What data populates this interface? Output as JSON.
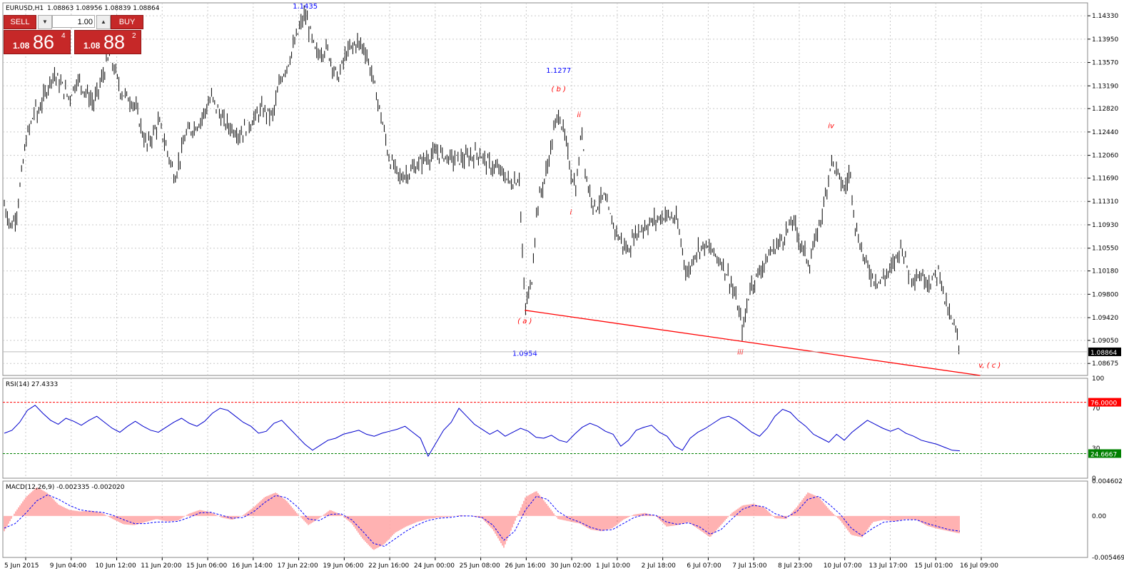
{
  "header": {
    "symbol_tf": "EURUSD,H1",
    "ohlc": "1.08863 1.08956 1.08839 1.08864"
  },
  "trade_panel": {
    "sell_label": "SELL",
    "buy_label": "BUY",
    "lot": "1.00",
    "sell_prefix": "1.08",
    "sell_big": "86",
    "sell_sup": "4",
    "buy_prefix": "1.08",
    "buy_big": "88",
    "buy_sup": "2",
    "down_icon": "triangle-down-icon",
    "up_icon": "triangle-up-icon"
  },
  "colors": {
    "candles": "#000000",
    "grid": "#c8c8c8",
    "wave_labels": "#ff0000",
    "price_labels": "#0000ff",
    "trendline": "#ff0000",
    "rsi_line": "#0000cd",
    "rsi_upper": "#ff0000",
    "rsi_lower": "#008000",
    "macd_hist": "#ff6464",
    "macd_signal": "#0000ff",
    "button": "#c62828",
    "current_price_tag": "#000000"
  },
  "chart_data": [
    {
      "type": "candlestick",
      "panel": "main",
      "symbol": "EURUSD",
      "timeframe": "H1",
      "ylim": [
        1.0848,
        1.1454
      ],
      "current_price": "1.08864",
      "y_ticks": [
        "1.14330",
        "1.13950",
        "1.13570",
        "1.13190",
        "1.12820",
        "1.12440",
        "1.12060",
        "1.11690",
        "1.11310",
        "1.10930",
        "1.10550",
        "1.10180",
        "1.09800",
        "1.09420",
        "1.09050",
        "1.08675"
      ],
      "x_ticks": [
        "5 Jun 2015",
        "9 Jun 04:00",
        "10 Jun 12:00",
        "11 Jun 20:00",
        "15 Jun 06:00",
        "16 Jun 14:00",
        "17 Jun 22:00",
        "19 Jun 06:00",
        "22 Jun 16:00",
        "24 Jun 00:00",
        "25 Jun 08:00",
        "26 Jun 16:00",
        "30 Jun 02:00",
        "1 Jul 10:00",
        "2 Jul 18:00",
        "6 Jul 07:00",
        "7 Jul 15:00",
        "8 Jul 23:00",
        "10 Jul 07:00",
        "13 Jul 17:00",
        "15 Jul 01:00",
        "16 Jul 09:00"
      ],
      "x_range": [
        "5 Jun 2015 00:00",
        "16 Jul 2015 09:00"
      ],
      "path": [
        [
          "5 Jun 2015 00:00",
          1.1125
        ],
        [
          "5 Jun 2015 05:00",
          1.109
        ],
        [
          "5 Jun 2015 09:00",
          1.111
        ],
        [
          "5 Jun 2015 16:00",
          1.123
        ],
        [
          "6 Jun 2015 00:00",
          1.129
        ],
        [
          "8 Jun 2015 00:00",
          1.127
        ],
        [
          "8 Jun 2015 12:00",
          1.134
        ],
        [
          "9 Jun 2015 00:00",
          1.13
        ],
        [
          "9 Jun 2015 06:00",
          1.133
        ],
        [
          "9 Jun 2015 18:00",
          1.129
        ],
        [
          "10 Jun 2015 06:00",
          1.137
        ],
        [
          "10 Jun 2015 14:00",
          1.131
        ],
        [
          "11 Jun 2015 00:00",
          1.129
        ],
        [
          "11 Jun 2015 09:00",
          1.122
        ],
        [
          "11 Jun 2015 18:00",
          1.126
        ],
        [
          "12 Jun 2015 06:00",
          1.117
        ],
        [
          "12 Jun 2015 14:00",
          1.124
        ],
        [
          "15 Jun 2015 00:00",
          1.126
        ],
        [
          "15 Jun 2015 09:00",
          1.13
        ],
        [
          "15 Jun 2015 18:00",
          1.126
        ],
        [
          "16 Jun 2015 06:00",
          1.124
        ],
        [
          "16 Jun 2015 14:00",
          1.126
        ],
        [
          "16 Jun 2015 22:00",
          1.128
        ],
        [
          "17 Jun 2015 06:00",
          1.127
        ],
        [
          "17 Jun 2015 12:00",
          1.133
        ],
        [
          "17 Jun 2015 18:00",
          1.136
        ],
        [
          "18 Jun 2015 03:00",
          1.142
        ],
        [
          "18 Jun 2015 06:00",
          1.1435
        ],
        [
          "18 Jun 2015 14:00",
          1.137
        ],
        [
          "18 Jun 2015 22:00",
          1.138
        ],
        [
          "19 Jun 2015 06:00",
          1.133
        ],
        [
          "19 Jun 2015 12:00",
          1.137
        ],
        [
          "19 Jun 2015 20:00",
          1.139
        ],
        [
          "22 Jun 2015 02:00",
          1.138
        ],
        [
          "22 Jun 2015 08:00",
          1.133
        ],
        [
          "22 Jun 2015 14:00",
          1.127
        ],
        [
          "22 Jun 2015 20:00",
          1.12
        ],
        [
          "23 Jun 2015 04:00",
          1.117
        ],
        [
          "23 Jun 2015 12:00",
          1.118
        ],
        [
          "23 Jun 2015 22:00",
          1.12
        ],
        [
          "24 Jun 2015 08:00",
          1.121
        ],
        [
          "24 Jun 2015 18:00",
          1.12
        ],
        [
          "25 Jun 2015 04:00",
          1.12
        ],
        [
          "25 Jun 2015 14:00",
          1.121
        ],
        [
          "25 Jun 2015 22:00",
          1.119
        ],
        [
          "26 Jun 2015 06:00",
          1.118
        ],
        [
          "26 Jun 2015 14:00",
          1.116
        ],
        [
          "26 Jun 2015 20:00",
          1.117
        ],
        [
          "29 Jun 2015 00:00",
          1.0954
        ],
        [
          "29 Jun 2015 05:00",
          1.1
        ],
        [
          "29 Jun 2015 09:00",
          1.112
        ],
        [
          "29 Jun 2015 16:00",
          1.118
        ],
        [
          "29 Jun 2015 22:00",
          1.125
        ],
        [
          "30 Jun 2015 01:00",
          1.1277
        ],
        [
          "30 Jun 2015 06:00",
          1.123
        ],
        [
          "30 Jun 2015 10:00",
          1.118
        ],
        [
          "30 Jun 2015 14:00",
          1.115
        ],
        [
          "30 Jun 2015 18:00",
          1.125
        ],
        [
          "30 Jun 2015 22:00",
          1.116
        ],
        [
          "1 Jul 2015 04:00",
          1.112
        ],
        [
          "1 Jul 2015 10:00",
          1.114
        ],
        [
          "1 Jul 2015 16:00",
          1.11
        ],
        [
          "1 Jul 2015 22:00",
          1.107
        ],
        [
          "2 Jul 2015 04:00",
          1.105
        ],
        [
          "2 Jul 2015 10:00",
          1.108
        ],
        [
          "2 Jul 2015 16:00",
          1.109
        ],
        [
          "3 Jul 2015 00:00",
          1.11
        ],
        [
          "3 Jul 2015 08:00",
          1.111
        ],
        [
          "3 Jul 2015 16:00",
          1.11
        ],
        [
          "6 Jul 2015 00:00",
          1.101
        ],
        [
          "6 Jul 2015 06:00",
          1.105
        ],
        [
          "6 Jul 2015 12:00",
          1.106
        ],
        [
          "6 Jul 2015 18:00",
          1.105
        ],
        [
          "7 Jul 2015 02:00",
          1.103
        ],
        [
          "7 Jul 2015 08:00",
          1.1
        ],
        [
          "7 Jul 2015 13:00",
          1.096
        ],
        [
          "7 Jul 2015 17:00",
          1.092
        ],
        [
          "7 Jul 2015 22:00",
          1.099
        ],
        [
          "8 Jul 2015 06:00",
          1.102
        ],
        [
          "8 Jul 2015 14:00",
          1.105
        ],
        [
          "8 Jul 2015 22:00",
          1.107
        ],
        [
          "9 Jul 2015 06:00",
          1.11
        ],
        [
          "9 Jul 2015 12:00",
          1.106
        ],
        [
          "9 Jul 2015 18:00",
          1.103
        ],
        [
          "10 Jul 2015 00:00",
          1.108
        ],
        [
          "10 Jul 2015 06:00",
          1.114
        ],
        [
          "10 Jul 2015 10:00",
          1.12
        ],
        [
          "10 Jul 2015 14:00",
          1.118
        ],
        [
          "10 Jul 2015 20:00",
          1.115
        ],
        [
          "13 Jul 2015 00:00",
          1.118
        ],
        [
          "13 Jul 2015 04:00",
          1.109
        ],
        [
          "13 Jul 2015 10:00",
          1.104
        ],
        [
          "13 Jul 2015 16:00",
          1.101
        ],
        [
          "13 Jul 2015 22:00",
          1.1
        ],
        [
          "14 Jul 2015 06:00",
          1.102
        ],
        [
          "14 Jul 2015 14:00",
          1.106
        ],
        [
          "14 Jul 2015 20:00",
          1.101
        ],
        [
          "15 Jul 2015 04:00",
          1.101
        ],
        [
          "15 Jul 2015 12:00",
          1.1
        ],
        [
          "15 Jul 2015 18:00",
          1.102
        ],
        [
          "15 Jul 2015 22:00",
          1.097
        ],
        [
          "16 Jul 2015 02:00",
          1.094
        ],
        [
          "16 Jul 2015 06:00",
          1.092
        ],
        [
          "16 Jul 2015 09:00",
          1.0886
        ]
      ],
      "annotations": [
        {
          "text": "1.1435",
          "kind": "price",
          "x": "18 Jun 2015 06:00",
          "y": 1.1445
        },
        {
          "text": "1.1277",
          "kind": "price",
          "x": "30 Jun 2015 01:00",
          "y": 1.134
        },
        {
          "text": "( b )",
          "kind": "wave",
          "x": "30 Jun 2015 01:00",
          "y": 1.131
        },
        {
          "text": "ii",
          "kind": "wave",
          "x": "30 Jun 2015 16:00",
          "y": 1.1268
        },
        {
          "text": "i",
          "kind": "wave",
          "x": "30 Jun 2015 10:00",
          "y": 1.111
        },
        {
          "text": "iv",
          "kind": "wave",
          "x": "10 Jul 2015 10:00",
          "y": 1.125
        },
        {
          "text": "( a )",
          "kind": "wave",
          "x": "28 Jun 2015 20:00",
          "y": 1.0933
        },
        {
          "text": "1.0954",
          "kind": "price",
          "x": "28 Jun 2015 18:00",
          "y": 1.088
        },
        {
          "text": "iii",
          "kind": "wave",
          "x": "7 Jul 2015 15:00",
          "y": 1.0882
        },
        {
          "text": "v, ( c )",
          "kind": "wave",
          "x": "17 Jul 2015 07:00",
          "y": 1.0861
        }
      ],
      "trendline": [
        [
          "28 Jun 2015 22:00",
          1.0954
        ],
        [
          "17 Jul 2015 00:00",
          1.0848
        ]
      ]
    },
    {
      "type": "line",
      "panel": "rsi",
      "name": "RSI(14)",
      "header_value": "27.4333",
      "ylim": [
        0,
        100
      ],
      "y_ticks": [
        "100",
        "70",
        "30",
        "0"
      ],
      "levels": [
        {
          "value": "76.0000",
          "y": 76,
          "color": "upper"
        },
        {
          "value": "24.6667",
          "y": 24.6667,
          "color": "lower"
        }
      ],
      "values": [
        45,
        48,
        56,
        68,
        73,
        65,
        58,
        54,
        60,
        57,
        53,
        58,
        62,
        56,
        50,
        46,
        52,
        57,
        52,
        48,
        46,
        51,
        56,
        60,
        55,
        52,
        57,
        65,
        70,
        68,
        62,
        56,
        52,
        45,
        47,
        55,
        58,
        50,
        42,
        34,
        28,
        33,
        38,
        40,
        44,
        46,
        48,
        44,
        42,
        45,
        47,
        49,
        52,
        46,
        40,
        22,
        35,
        48,
        56,
        70,
        62,
        54,
        49,
        44,
        48,
        42,
        46,
        50,
        47,
        41,
        40,
        43,
        38,
        36,
        44,
        51,
        55,
        52,
        47,
        44,
        32,
        38,
        48,
        51,
        53,
        46,
        42,
        32,
        28,
        40,
        46,
        50,
        55,
        60,
        62,
        58,
        52,
        46,
        42,
        50,
        62,
        69,
        66,
        58,
        52,
        44,
        40,
        36,
        44,
        38,
        46,
        52,
        58,
        54,
        50,
        47,
        50,
        45,
        42,
        38,
        36,
        34,
        31,
        28,
        27.4
      ]
    },
    {
      "type": "bar",
      "panel": "macd",
      "name": "MACD(12,26,9)",
      "header_values": "-0.002335 -0.002020",
      "ylim": [
        -0.00546,
        0.0046
      ],
      "y_ticks": [
        "0.004602",
        "0.00",
        "-0.005469"
      ],
      "histogram": [
        -0.002,
        0.0005,
        0.0025,
        0.0038,
        0.003,
        0.0015,
        0.0008,
        0.0006,
        0.0007,
        0.0004,
        -0.0004,
        -0.0011,
        -0.0012,
        -0.0008,
        -0.0004,
        -0.0007,
        -0.0006,
        0.0003,
        0.0008,
        0.0005,
        -0.0002,
        -0.0005,
        0.0001,
        0.0012,
        0.0025,
        0.0031,
        0.002,
        0.0003,
        -0.0012,
        -0.0003,
        0.0008,
        0.0002,
        -0.001,
        -0.003,
        -0.0045,
        -0.0037,
        -0.0022,
        -0.0014,
        -0.0008,
        -0.0004,
        -0.0002,
        -0.0001,
        0.0001,
        0.0,
        -0.0003,
        -0.0018,
        -0.0042,
        -0.0008,
        0.0025,
        0.0033,
        0.0015,
        -0.0004,
        -0.0007,
        -0.001,
        -0.0018,
        -0.002,
        -0.0016,
        -0.0005,
        0.0002,
        0.0004,
        0.0,
        -0.0014,
        -0.0012,
        -0.0008,
        -0.0018,
        -0.0028,
        -0.0012,
        0.0004,
        0.0014,
        0.0016,
        0.0011,
        -0.0003,
        -0.0004,
        0.0012,
        0.0031,
        0.0025,
        0.0008,
        -0.0006,
        -0.0025,
        -0.0028,
        -0.0008,
        -0.0005,
        -0.0007,
        -0.0004,
        -0.0005,
        -0.0013,
        -0.0017,
        -0.002,
        -0.0023
      ],
      "signal": [
        -0.0016,
        -0.001,
        0.0004,
        0.002,
        0.0028,
        0.0022,
        0.0014,
        0.0008,
        0.0006,
        0.0005,
        0.0001,
        -0.0005,
        -0.001,
        -0.001,
        -0.0008,
        -0.0008,
        -0.0007,
        -0.0002,
        0.0004,
        0.0005,
        0.0001,
        -0.0003,
        -0.0002,
        0.0006,
        0.0018,
        0.0027,
        0.0024,
        0.0012,
        -0.0004,
        -0.0006,
        0.0002,
        0.0003,
        -0.0005,
        -0.002,
        -0.0036,
        -0.004,
        -0.003,
        -0.002,
        -0.0012,
        -0.0006,
        -0.0003,
        -0.0002,
        0.0,
        0.0,
        -0.0002,
        -0.0012,
        -0.0032,
        -0.002,
        0.0008,
        0.0026,
        0.0022,
        0.0006,
        -0.0003,
        -0.0008,
        -0.0015,
        -0.0019,
        -0.0018,
        -0.001,
        -0.0002,
        0.0002,
        0.0001,
        -0.0008,
        -0.0011,
        -0.0009,
        -0.0014,
        -0.0024,
        -0.0018,
        -0.0004,
        0.0009,
        0.0014,
        0.0012,
        0.0003,
        -0.0002,
        0.0006,
        0.0022,
        0.0026,
        0.0015,
        0.0002,
        -0.0016,
        -0.0026,
        -0.0016,
        -0.0008,
        -0.0007,
        -0.0005,
        -0.0005,
        -0.001,
        -0.0014,
        -0.0018,
        -0.002
      ]
    }
  ]
}
